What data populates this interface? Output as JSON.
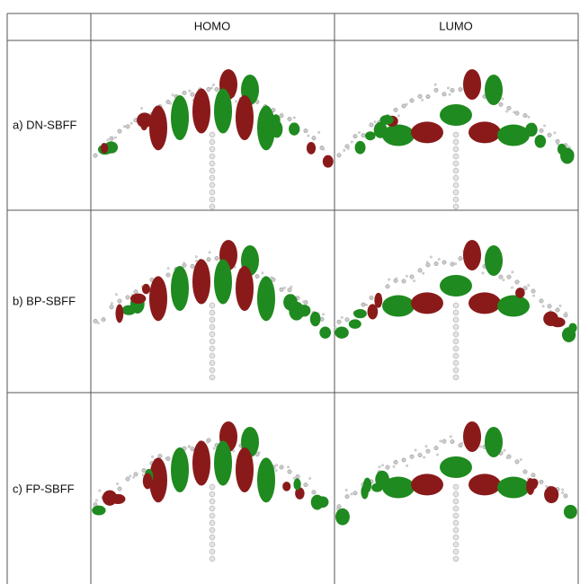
{
  "table": {
    "header": [
      "HOMO",
      "LUMO"
    ],
    "rows": [
      "a) DN-SBFF",
      "b) BP-SBFF",
      "c) FP-SBFF"
    ]
  }
}
